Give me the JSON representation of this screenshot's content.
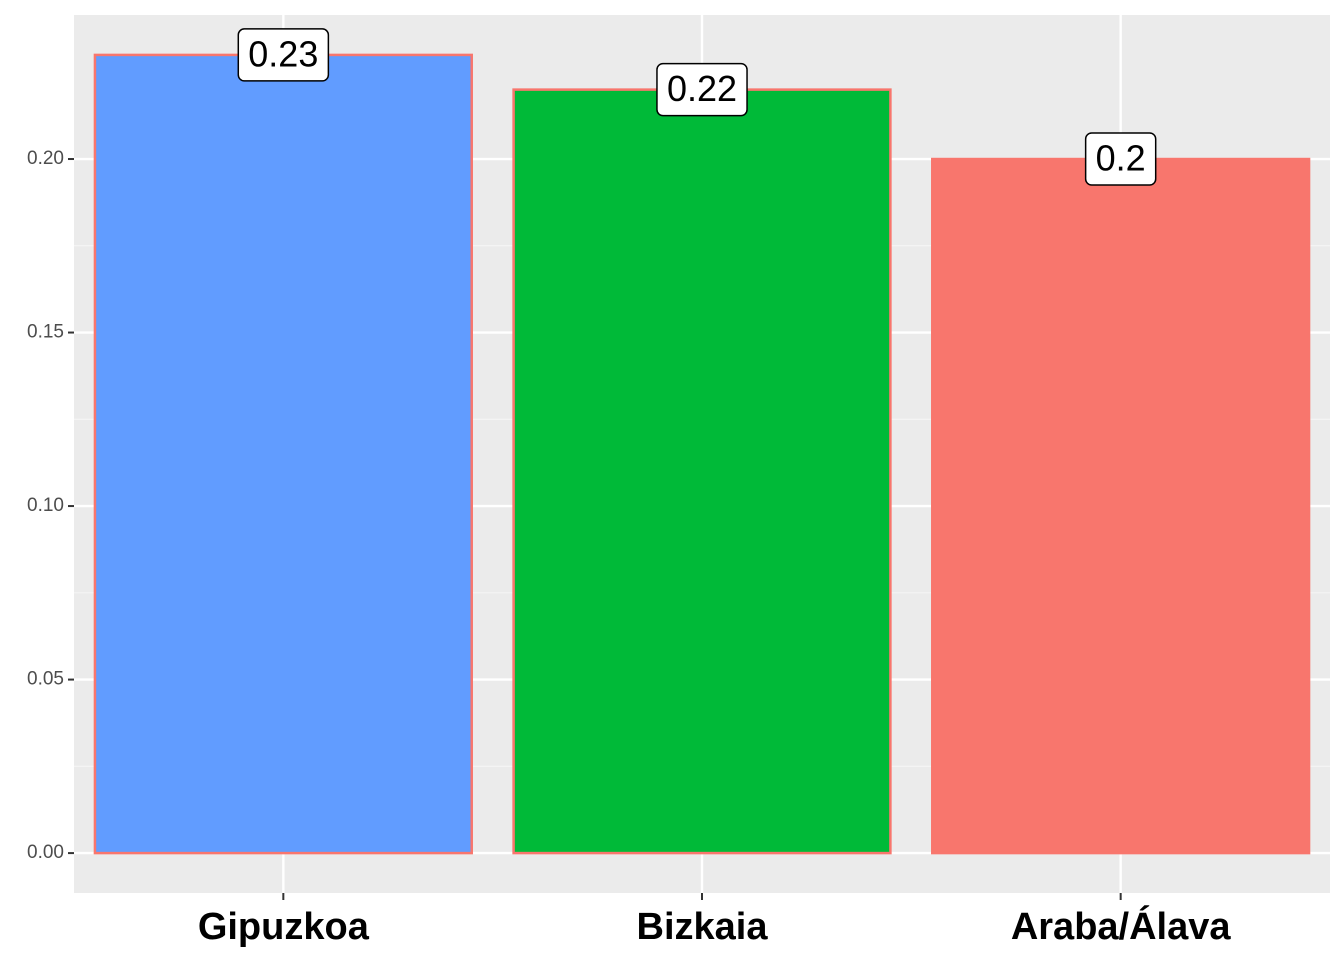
{
  "chart_data": {
    "type": "bar",
    "categories": [
      "Gipuzkoa",
      "Bizkaia",
      "Araba/Álava"
    ],
    "values": [
      0.23,
      0.22,
      0.2
    ],
    "colors": [
      "#619CFF",
      "#00BA38",
      "#F8766D"
    ],
    "outline": "#F8766D",
    "ylim": [
      -0.0115,
      0.2415
    ],
    "yticks": [
      {
        "value": 0,
        "label": "0.00"
      },
      {
        "value": 0.05,
        "label": "0.05"
      },
      {
        "value": 0.1,
        "label": "0.10"
      },
      {
        "value": 0.15,
        "label": "0.15"
      },
      {
        "value": 0.2,
        "label": "0.20"
      }
    ],
    "grid": true
  }
}
